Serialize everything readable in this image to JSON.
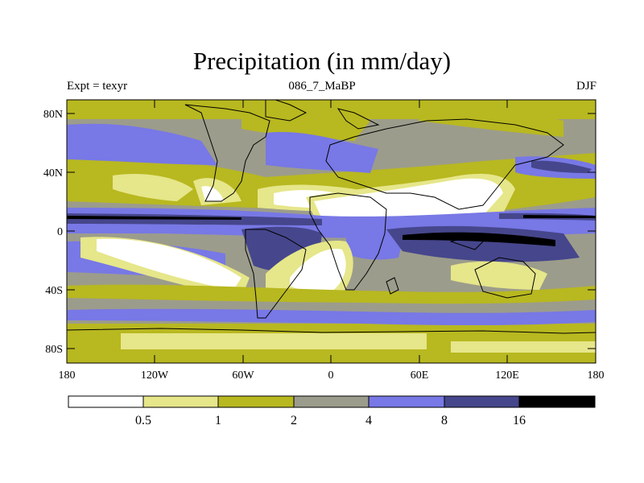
{
  "title": "Precipitation (in mm/day)",
  "subtitle_left": "Expt = texyr",
  "subtitle_center": "086_7_MaBP",
  "subtitle_right": "DJF",
  "lat_ticks": [
    "80N",
    "40N",
    "0",
    "40S",
    "80S"
  ],
  "lon_ticks": [
    "180",
    "120W",
    "60W",
    "0",
    "60E",
    "120E",
    "180"
  ],
  "colorbar": {
    "labels": [
      "0.5",
      "1",
      "2",
      "4",
      "8",
      "16"
    ],
    "colors": [
      "#ffffff",
      "#e6e68a",
      "#b8b820",
      "#9c9c8c",
      "#7878e6",
      "#46468c",
      "#000000"
    ]
  },
  "map_colors": {
    "dry": "#ffffff",
    "light": "#e6e68a",
    "yellow": "#b8b820",
    "gray": "#9c9c8c",
    "blue": "#7878e6",
    "darkblue": "#46468c",
    "black": "#000000"
  }
}
